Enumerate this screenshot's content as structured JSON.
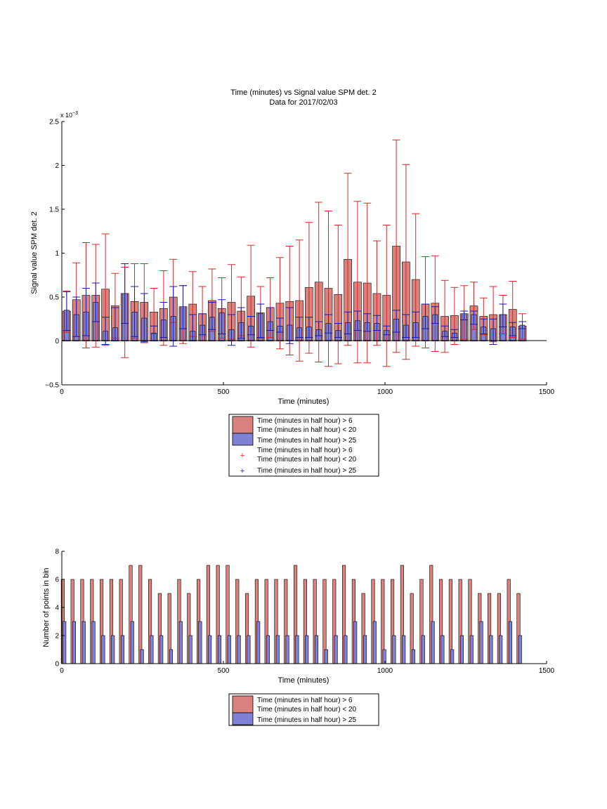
{
  "chart_data": [
    {
      "type": "bar",
      "title": "Time (minutes) vs Signal value SPM det. 2",
      "subtitle": "Data for 2017/02/03",
      "xlabel": "Time (minutes)",
      "ylabel": "Signal value SPM det. 2",
      "y_exponent_label": "x 10",
      "y_exponent": "−3",
      "xlim": [
        0,
        1500
      ],
      "ylim": [
        -0.5,
        2.5
      ],
      "x_ticks": [
        "0",
        "500",
        "1000",
        "1500"
      ],
      "y_ticks": [
        "−0.5",
        "0",
        "0.5",
        "1",
        "1.5",
        "2",
        "2.5"
      ],
      "grid": false,
      "legend_position": "below",
      "x": [
        15,
        45,
        75,
        105,
        135,
        165,
        195,
        225,
        255,
        285,
        315,
        345,
        375,
        405,
        435,
        465,
        495,
        525,
        555,
        585,
        615,
        645,
        675,
        705,
        735,
        765,
        795,
        825,
        855,
        885,
        915,
        945,
        975,
        1005,
        1035,
        1065,
        1095,
        1125,
        1155,
        1185,
        1215,
        1245,
        1275,
        1305,
        1335,
        1365,
        1395,
        1425
      ],
      "series": [
        {
          "name": "Time (minutes in half hour) > 6\nTime (minutes in half hour) < 20",
          "color": "#d9827e",
          "values": [
            0.34,
            0.47,
            0.52,
            0.52,
            0.59,
            0.4,
            0.54,
            0.45,
            0.44,
            0.33,
            0.37,
            0.5,
            0.39,
            0.42,
            0.31,
            0.46,
            0.37,
            0.44,
            0.34,
            0.51,
            0.32,
            0.38,
            0.43,
            0.45,
            0.46,
            0.61,
            0.67,
            0.6,
            0.53,
            0.93,
            0.67,
            0.66,
            0.54,
            0.52,
            1.08,
            0.9,
            0.7,
            0.42,
            0.43,
            0.28,
            0.29,
            0.31,
            0.4,
            0.28,
            0.3,
            0.3,
            0.36,
            0.17
          ],
          "error_low": [
            0.1,
            0.05,
            -0.08,
            -0.07,
            -0.05,
            0.03,
            -0.19,
            0.03,
            -0.02,
            0.08,
            -0.05,
            0.21,
            -0.03,
            0.05,
            0.0,
            0.11,
            0.03,
            0.02,
            0.06,
            -0.07,
            0.03,
            0.04,
            -0.09,
            -0.16,
            -0.23,
            -0.14,
            -0.24,
            -0.29,
            -0.26,
            -0.05,
            -0.25,
            -0.25,
            -0.05,
            -0.29,
            -0.13,
            -0.21,
            -0.06,
            -0.08,
            -0.12,
            -0.13,
            -0.04,
            0.02,
            0.13,
            0.07,
            -0.01,
            0.08,
            0.04,
            0.02
          ],
          "error_high": [
            0.57,
            0.89,
            1.12,
            1.1,
            1.22,
            0.77,
            0.84,
            0.88,
            0.88,
            0.6,
            0.8,
            0.93,
            0.63,
            0.79,
            0.62,
            0.82,
            0.72,
            0.87,
            0.73,
            1.09,
            0.62,
            0.72,
            0.95,
            1.08,
            1.15,
            1.35,
            1.58,
            1.48,
            1.32,
            1.91,
            1.59,
            1.57,
            1.14,
            1.32,
            2.29,
            2.01,
            1.45,
            0.96,
            0.97,
            0.69,
            0.61,
            0.63,
            0.67,
            0.49,
            0.62,
            0.52,
            0.68,
            0.31
          ]
        },
        {
          "name": "Time (minutes in half hour) > 25",
          "color": "#8080d4",
          "values": [
            0.35,
            0.3,
            0.33,
            0.44,
            0.11,
            0.15,
            0.54,
            0.33,
            0.26,
            0.09,
            0.24,
            0.28,
            0.39,
            0.11,
            0.18,
            0.27,
            0.32,
            0.13,
            0.21,
            0.17,
            0.31,
            0.22,
            0.17,
            0.18,
            0.15,
            0.16,
            0.13,
            0.2,
            0.12,
            0.21,
            0.23,
            0.21,
            0.2,
            0.12,
            0.25,
            0.18,
            0.21,
            0.28,
            0.3,
            0.11,
            0.09,
            0.31,
            0.3,
            0.16,
            0.14,
            0.3,
            0.16,
            0.18
          ],
          "error_low": [
            0.12,
            0.05,
            0.06,
            0.22,
            -0.04,
            0.0,
            0.2,
            0.05,
            -0.01,
            0.0,
            0.04,
            -0.06,
            0.14,
            0.0,
            0.07,
            0.13,
            0.08,
            -0.05,
            0.03,
            0.07,
            0.04,
            0.12,
            0.1,
            -0.03,
            0.04,
            0.04,
            0.06,
            0.09,
            0.04,
            0.08,
            0.12,
            0.11,
            0.12,
            0.07,
            0.1,
            0.04,
            0.04,
            0.14,
            0.2,
            0.05,
            0.04,
            0.24,
            0.19,
            0.08,
            -0.04,
            0.16,
            0.06,
            0.14
          ],
          "error_high": [
            0.56,
            0.5,
            0.6,
            0.66,
            0.27,
            0.38,
            0.88,
            0.62,
            0.54,
            0.17,
            0.44,
            0.62,
            0.63,
            0.3,
            0.31,
            0.44,
            0.47,
            0.3,
            0.38,
            0.28,
            0.42,
            0.38,
            0.26,
            0.38,
            0.27,
            0.27,
            0.22,
            0.3,
            0.2,
            0.33,
            0.34,
            0.31,
            0.29,
            0.17,
            0.35,
            0.3,
            0.33,
            0.42,
            0.39,
            0.17,
            0.13,
            0.34,
            0.34,
            0.25,
            0.25,
            0.42,
            0.21,
            0.22
          ]
        }
      ],
      "marker_series": [
        {
          "name": "Time (minutes in half hour) > 6\nTime (minutes in half hour) < 20",
          "marker": "+",
          "color": "#e02020"
        },
        {
          "name": "Time (minutes in half hour) > 25",
          "marker": "+",
          "color": "#1a1ab0"
        }
      ]
    },
    {
      "type": "bar",
      "xlabel": "Time (minutes)",
      "ylabel": "Number of points in bin",
      "xlim": [
        0,
        1500
      ],
      "ylim": [
        0,
        8
      ],
      "x_ticks": [
        "0",
        "500",
        "1000",
        "1500"
      ],
      "y_ticks": [
        "0",
        "2",
        "4",
        "6",
        "8"
      ],
      "grid": false,
      "legend_position": "below",
      "x": [
        15,
        45,
        75,
        105,
        135,
        165,
        195,
        225,
        255,
        285,
        315,
        345,
        375,
        405,
        435,
        465,
        495,
        525,
        555,
        585,
        615,
        645,
        675,
        705,
        735,
        765,
        795,
        825,
        855,
        885,
        915,
        945,
        975,
        1005,
        1035,
        1065,
        1095,
        1125,
        1155,
        1185,
        1215,
        1245,
        1275,
        1305,
        1335,
        1365,
        1395,
        1425
      ],
      "series": [
        {
          "name": "Time (minutes in half hour) > 6\nTime (minutes in half hour) < 20",
          "color": "#d9827e",
          "values": [
            6,
            6,
            6,
            6,
            6,
            6,
            6,
            7,
            7,
            6,
            5,
            5,
            6,
            5,
            6,
            7,
            7,
            7,
            6,
            5,
            6,
            6,
            6,
            6,
            7,
            6,
            6,
            6,
            6,
            7,
            6,
            5,
            6,
            6,
            6,
            7,
            5,
            6,
            7,
            6,
            6,
            6,
            6,
            5,
            5,
            5,
            6,
            5
          ]
        },
        {
          "name": "Time (minutes in half hour) > 25",
          "color": "#8080d4",
          "values": [
            3,
            3,
            3,
            3,
            2,
            2,
            2,
            3,
            1,
            2,
            2,
            1,
            3,
            2,
            3,
            2,
            2,
            2,
            2,
            2,
            3,
            2,
            2,
            2,
            2,
            2,
            2,
            1,
            2,
            2,
            3,
            2,
            3,
            1,
            2,
            2,
            1,
            2,
            3,
            2,
            1,
            2,
            2,
            3,
            2,
            2,
            3,
            2
          ]
        }
      ]
    }
  ]
}
